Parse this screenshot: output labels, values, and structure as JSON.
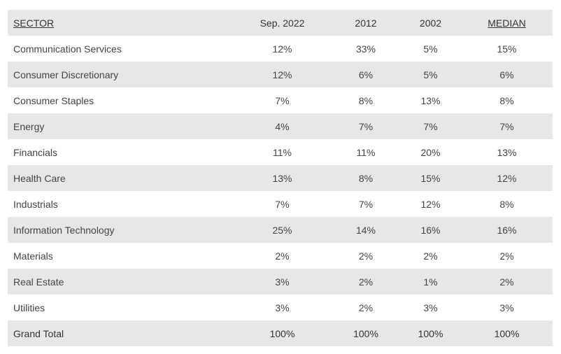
{
  "table": {
    "headers": {
      "sector": "SECTOR",
      "sep2022": "Sep. 2022",
      "y2012": "2012",
      "y2002": "2002",
      "median": "MEDIAN"
    },
    "rows": [
      {
        "sector": "Communication Services",
        "sep2022": "12%",
        "y2012": "33%",
        "y2002": "5%",
        "median": "15%"
      },
      {
        "sector": "Consumer Discretionary",
        "sep2022": "12%",
        "y2012": "6%",
        "y2002": "5%",
        "median": "6%"
      },
      {
        "sector": "Consumer Staples",
        "sep2022": "7%",
        "y2012": "8%",
        "y2002": "13%",
        "median": "8%"
      },
      {
        "sector": "Energy",
        "sep2022": "4%",
        "y2012": "7%",
        "y2002": "7%",
        "median": "7%"
      },
      {
        "sector": "Financials",
        "sep2022": "11%",
        "y2012": "11%",
        "y2002": "20%",
        "median": "13%"
      },
      {
        "sector": "Health Care",
        "sep2022": "13%",
        "y2012": "8%",
        "y2002": "15%",
        "median": "12%"
      },
      {
        "sector": "Industrials",
        "sep2022": "7%",
        "y2012": "7%",
        "y2002": "12%",
        "median": "8%"
      },
      {
        "sector": "Information Technology",
        "sep2022": "25%",
        "y2012": "14%",
        "y2002": "16%",
        "median": "16%"
      },
      {
        "sector": "Materials",
        "sep2022": "2%",
        "y2012": "2%",
        "y2002": "2%",
        "median": "2%"
      },
      {
        "sector": "Real Estate",
        "sep2022": "3%",
        "y2012": "2%",
        "y2002": "1%",
        "median": "2%"
      },
      {
        "sector": "Utilities",
        "sep2022": "3%",
        "y2012": "2%",
        "y2002": "3%",
        "median": "3%"
      },
      {
        "sector": "Grand Total",
        "sep2022": "100%",
        "y2012": "100%",
        "y2002": "100%",
        "median": "100%"
      }
    ]
  },
  "colors": {
    "shaded_row": "#e7e7e7",
    "plain_row": "#ffffff",
    "text": "#444444"
  }
}
